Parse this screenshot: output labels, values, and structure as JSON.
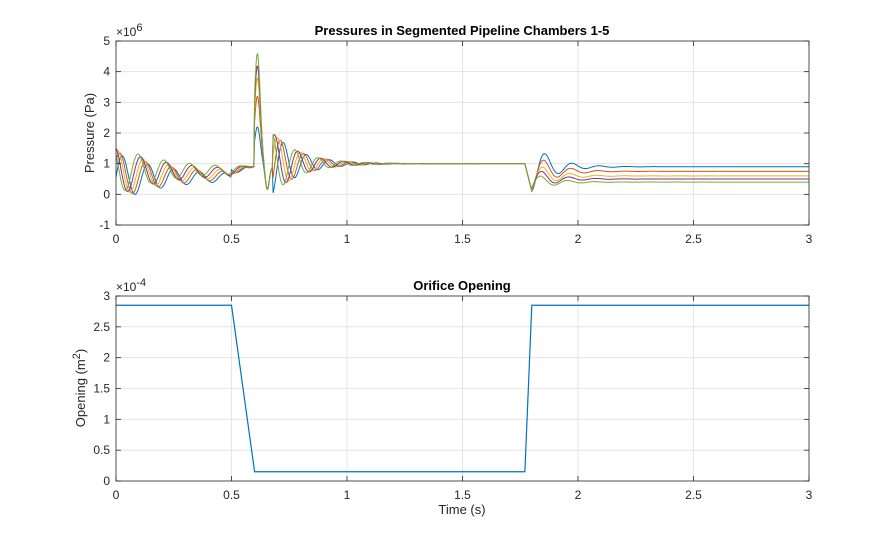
{
  "chart_data": [
    {
      "type": "line",
      "title": "Pressures in Segmented Pipeline Chambers 1-5",
      "xlabel": "",
      "ylabel": "Pressure (Pa)",
      "y_exponent_base": "×10",
      "y_exponent_power": "6",
      "xlim": [
        0,
        3
      ],
      "ylim": [
        -1,
        5
      ],
      "x_ticks": [
        0,
        0.5,
        1,
        1.5,
        2,
        2.5,
        3
      ],
      "x_tick_labels": [
        "0",
        "0.5",
        "1",
        "1.5",
        "2",
        "2.5",
        "3"
      ],
      "y_ticks": [
        -1,
        0,
        1,
        2,
        3,
        4,
        5
      ],
      "y_tick_labels": [
        "-1",
        "0",
        "1",
        "2",
        "3",
        "4",
        "5"
      ],
      "grid": true,
      "legend": "none",
      "series": [
        {
          "color": "#0072BD",
          "final_value": 0.9,
          "peak": 2.2,
          "phase": 0.0
        },
        {
          "color": "#D95319",
          "final_value": 0.75,
          "peak": 3.2,
          "phase": 0.6
        },
        {
          "color": "#EDB120",
          "final_value": 0.6,
          "peak": 3.8,
          "phase": 1.2
        },
        {
          "color": "#7E2F8E",
          "final_value": 0.5,
          "peak": 4.2,
          "phase": 1.8
        },
        {
          "color": "#77AC30",
          "final_value": 0.4,
          "peak": 4.6,
          "phase": 2.4
        }
      ]
    },
    {
      "type": "line",
      "title": "Orifice Opening",
      "xlabel": "Time (s)",
      "ylabel_main": "Opening  (m",
      "ylabel_sup": "2",
      "ylabel_end": ")",
      "y_exponent_base": "×10",
      "y_exponent_power": "-4",
      "xlim": [
        0,
        3
      ],
      "ylim": [
        0,
        3
      ],
      "x_ticks": [
        0,
        0.5,
        1,
        1.5,
        2,
        2.5,
        3
      ],
      "x_tick_labels": [
        "0",
        "0.5",
        "1",
        "1.5",
        "2",
        "2.5",
        "3"
      ],
      "y_ticks": [
        0,
        0.5,
        1,
        1.5,
        2,
        2.5,
        3
      ],
      "y_tick_labels": [
        "0",
        "0.5",
        "1",
        "1.5",
        "2",
        "2.5",
        "3"
      ],
      "grid": true,
      "legend": "none",
      "series": [
        {
          "color": "#0072BD",
          "x": [
            0,
            0.5,
            0.6,
            1.77,
            1.8,
            3
          ],
          "y": [
            2.85,
            2.85,
            0.15,
            0.15,
            2.85,
            2.85
          ]
        }
      ]
    }
  ]
}
